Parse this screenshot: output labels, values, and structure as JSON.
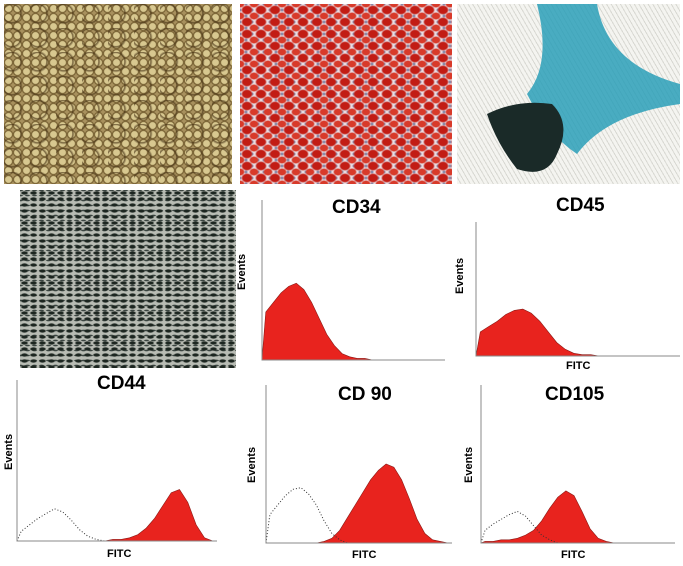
{
  "panels": [
    "adipogenic-oil-red",
    "osteogenic-alizarin-red",
    "chondrogenic-alcian-blue",
    "von-kossa"
  ],
  "colors": {
    "stained": "#e8231e",
    "control": "#333333",
    "axis": "#888888"
  },
  "chart_data": [
    {
      "type": "histogram",
      "title": "CD34",
      "ylabel": "Events",
      "xlabel": "",
      "x_range": [
        0,
        24
      ],
      "y_range": [
        0,
        100
      ],
      "series": [
        {
          "values": [
            30,
            36,
            42,
            46,
            48,
            44,
            36,
            26,
            16,
            9,
            4,
            2,
            1,
            1,
            0,
            0,
            0,
            0,
            0,
            0,
            0,
            0,
            0,
            0
          ]
        }
      ]
    },
    {
      "type": "histogram",
      "title": "CD45",
      "ylabel": "Events",
      "xlabel": "FITC",
      "x_range": [
        0,
        24
      ],
      "y_range": [
        0,
        100
      ],
      "series": [
        {
          "values": [
            18,
            22,
            26,
            31,
            34,
            35,
            32,
            26,
            18,
            10,
            5,
            2,
            1,
            1,
            0,
            0,
            0,
            0,
            0,
            0,
            0,
            0,
            0,
            0
          ]
        }
      ]
    },
    {
      "type": "histogram",
      "title": "CD44",
      "ylabel": "Events",
      "xlabel": "FITC",
      "x_range": [
        0,
        24
      ],
      "y_range": [
        0,
        100
      ],
      "series": [
        {
          "values": [
            0,
            0,
            0,
            0,
            0,
            0,
            0,
            0,
            0,
            0,
            0,
            1,
            1,
            2,
            4,
            8,
            14,
            22,
            30,
            32,
            24,
            10,
            2,
            0
          ]
        },
        {
          "values": [
            6,
            10,
            14,
            17,
            20,
            18,
            13,
            7,
            3,
            1,
            0,
            0,
            0,
            0,
            0,
            0,
            0,
            0,
            0,
            0,
            0,
            0,
            0,
            0
          ]
        }
      ]
    },
    {
      "type": "histogram",
      "title": "CD 90",
      "ylabel": "Events",
      "xlabel": "FITC",
      "x_range": [
        0,
        24
      ],
      "y_range": [
        0,
        100
      ],
      "series": [
        {
          "values": [
            0,
            0,
            0,
            0,
            0,
            0,
            0,
            1,
            3,
            8,
            16,
            24,
            32,
            40,
            46,
            50,
            48,
            40,
            28,
            15,
            6,
            2,
            1,
            0
          ]
        },
        {
          "values": [
            18,
            24,
            30,
            34,
            35,
            31,
            24,
            14,
            6,
            2,
            0,
            0,
            0,
            0,
            0,
            0,
            0,
            0,
            0,
            0,
            0,
            0,
            0,
            0
          ]
        }
      ]
    },
    {
      "type": "histogram",
      "title": "CD105",
      "ylabel": "Events",
      "xlabel": "FITC",
      "x_range": [
        0,
        24
      ],
      "y_range": [
        0,
        100
      ],
      "series": [
        {
          "values": [
            1,
            1,
            2,
            2,
            3,
            5,
            8,
            14,
            22,
            29,
            33,
            30,
            20,
            9,
            3,
            1,
            0,
            0,
            0,
            0,
            0,
            0,
            0,
            0
          ]
        },
        {
          "values": [
            8,
            12,
            15,
            18,
            20,
            17,
            11,
            5,
            2,
            0,
            0,
            0,
            0,
            0,
            0,
            0,
            0,
            0,
            0,
            0,
            0,
            0,
            0,
            0
          ]
        }
      ]
    }
  ]
}
